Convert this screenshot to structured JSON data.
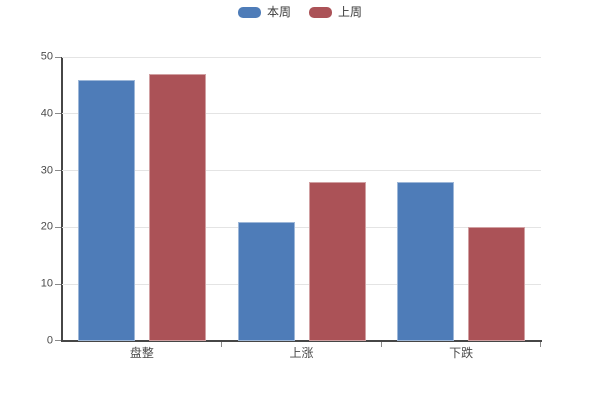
{
  "legend": {
    "items": [
      {
        "label": "本周",
        "color": "#4e7cb8"
      },
      {
        "label": "上周",
        "color": "#ab5257"
      }
    ]
  },
  "chart_data": {
    "type": "bar",
    "categories": [
      "盘整",
      "上涨",
      "下跌"
    ],
    "series": [
      {
        "name": "本周",
        "color": "#4e7cb8",
        "values": [
          46,
          21,
          28
        ]
      },
      {
        "name": "上周",
        "color": "#ab5257",
        "values": [
          47,
          28,
          20
        ]
      }
    ],
    "title": "",
    "xlabel": "",
    "ylabel": "",
    "ylim": [
      0,
      50
    ],
    "yticks": [
      0,
      10,
      20,
      30,
      40,
      50
    ],
    "grid": "horizontal",
    "legend_position": "top-center",
    "grid_color": "#e4e4e4",
    "axis_color": "#464646",
    "tick_color": "#8a8a8a",
    "label_color": "#4a4a4a"
  }
}
